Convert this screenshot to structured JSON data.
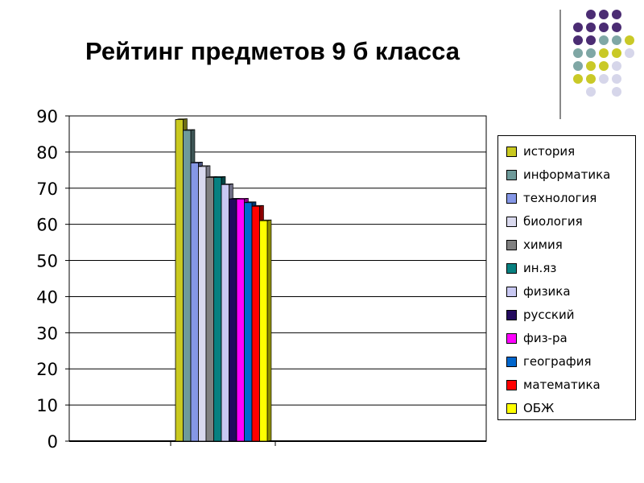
{
  "slide": {
    "title": "Рейтинг предметов 9 б класса"
  },
  "decor": {
    "dot_colors": {
      "purple": "#4b2c73",
      "teal": "#7fa7a5",
      "yellow": "#c9c927",
      "lavender": "#d6d6ea"
    },
    "divider_color": "#8a8a8a"
  },
  "chart_data": {
    "type": "bar",
    "title": "Рейтинг предметов 9 б класса",
    "xlabel": "",
    "ylabel": "",
    "ylim": [
      0,
      90
    ],
    "yticks": [
      "0",
      "10",
      "20",
      "30",
      "40",
      "50",
      "60",
      "70",
      "80",
      "90"
    ],
    "grid": true,
    "legend_position": "right",
    "bar_style": "3d",
    "series": [
      {
        "name": "история",
        "value": 89,
        "color": "#c9c920"
      },
      {
        "name": "информатика",
        "value": 86,
        "color": "#6e9a9a"
      },
      {
        "name": "технология",
        "value": 77,
        "color": "#8597e6"
      },
      {
        "name": "биология",
        "value": 76,
        "color": "#d9d9ee"
      },
      {
        "name": "химия",
        "value": 73,
        "color": "#808080"
      },
      {
        "name": "ин.яз",
        "value": 73,
        "color": "#078080"
      },
      {
        "name": "физика",
        "value": 71,
        "color": "#c8c8f2"
      },
      {
        "name": "русский",
        "value": 67,
        "color": "#230a5e"
      },
      {
        "name": "физ-ра",
        "value": 67,
        "color": "#ff00ff"
      },
      {
        "name": "география",
        "value": 66,
        "color": "#0066cc"
      },
      {
        "name": "математика",
        "value": 65,
        "color": "#ff0000"
      },
      {
        "name": "ОБЖ",
        "value": 61,
        "color": "#ffff00"
      }
    ]
  }
}
